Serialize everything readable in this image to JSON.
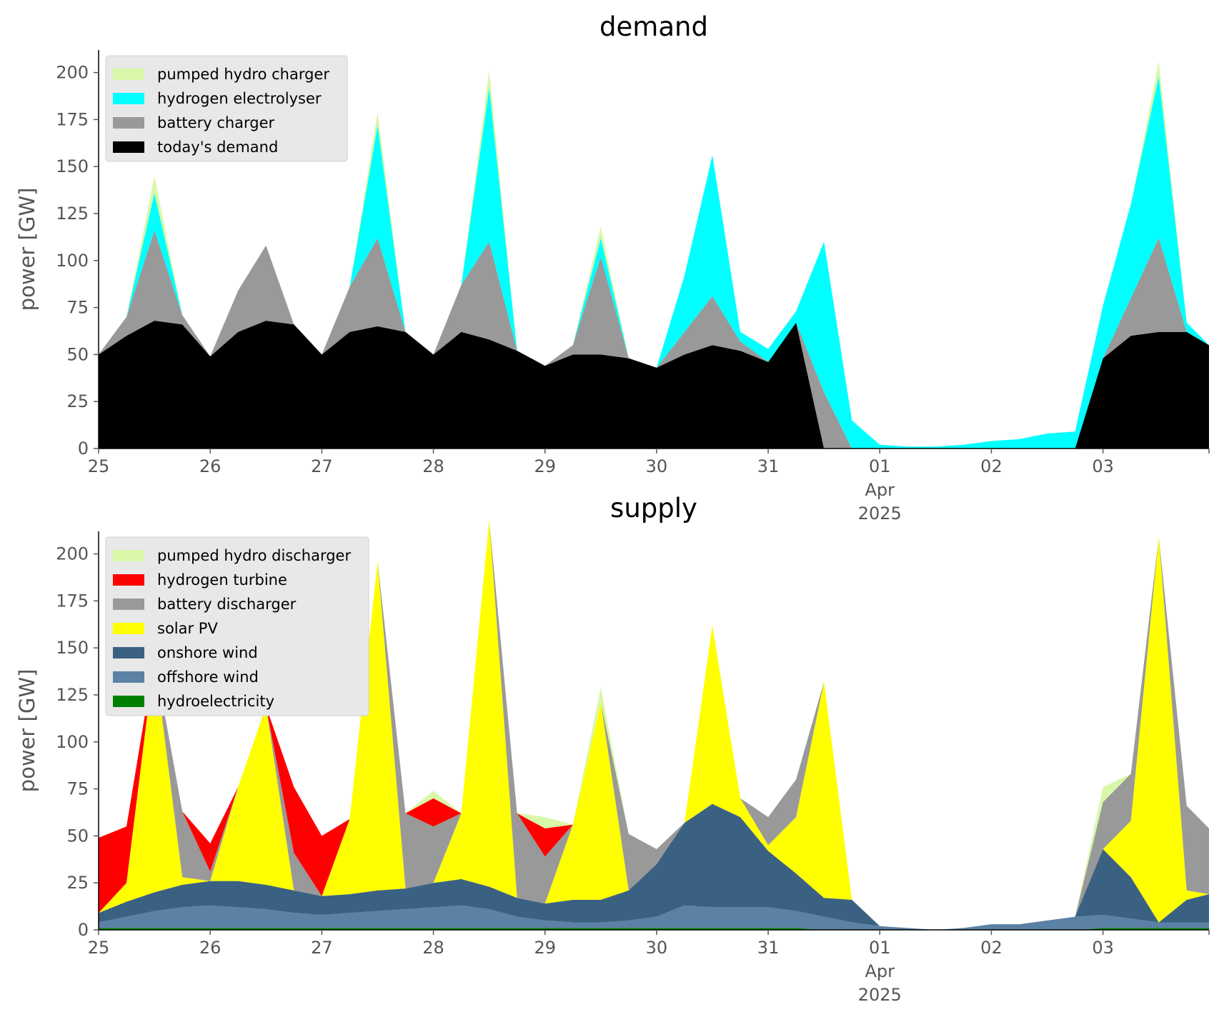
{
  "chart_data": [
    {
      "type": "area",
      "stacked": true,
      "title": "demand",
      "ylabel": "power [GW]",
      "ylim": [
        0,
        212
      ],
      "yticks": [
        "0",
        "25",
        "50",
        "75",
        "100",
        "125",
        "150",
        "175",
        "200"
      ],
      "xlim": [
        0,
        9.95
      ],
      "xticks": [
        {
          "x": 0,
          "labels": [
            "25"
          ]
        },
        {
          "x": 1,
          "labels": [
            "26"
          ]
        },
        {
          "x": 2,
          "labels": [
            "27"
          ]
        },
        {
          "x": 3,
          "labels": [
            "28"
          ]
        },
        {
          "x": 4,
          "labels": [
            "29"
          ]
        },
        {
          "x": 5,
          "labels": [
            "30"
          ]
        },
        {
          "x": 6,
          "labels": [
            "31"
          ]
        },
        {
          "x": 7,
          "labels": [
            "01",
            "Apr",
            "2025"
          ]
        },
        {
          "x": 8,
          "labels": [
            "02"
          ]
        },
        {
          "x": 9,
          "labels": [
            "03"
          ]
        }
      ],
      "legend_location": "upper-left",
      "legend": [
        "pumped hydro charger",
        "hydrogen electrolyser",
        "battery charger",
        "today's demand"
      ],
      "x": [
        0,
        0.25,
        0.5,
        0.75,
        1,
        1.25,
        1.5,
        1.75,
        2,
        2.25,
        2.5,
        2.75,
        3,
        3.25,
        3.5,
        3.75,
        4,
        4.25,
        4.5,
        4.75,
        5,
        5.25,
        5.5,
        5.75,
        6,
        6.25,
        6.5,
        6.75,
        7,
        7.25,
        7.5,
        7.75,
        8,
        8.25,
        8.5,
        8.75,
        9,
        9.25,
        9.5,
        9.75,
        9.95
      ],
      "series": [
        {
          "name": "today's demand",
          "color": "#000000",
          "values": [
            50,
            60,
            68,
            66,
            49,
            62,
            68,
            66,
            50,
            62,
            65,
            62,
            50,
            62,
            58,
            52,
            44,
            50,
            50,
            48,
            43,
            50,
            55,
            52,
            46,
            67,
            0,
            0,
            0,
            0,
            0,
            0,
            0,
            0,
            0,
            0,
            48,
            60,
            62,
            62,
            55
          ]
        },
        {
          "name": "battery charger",
          "color": "#999999",
          "values": [
            0,
            10,
            48,
            5,
            0,
            22,
            40,
            0,
            0,
            24,
            47,
            0,
            0,
            25,
            52,
            0,
            0,
            5,
            52,
            0,
            0,
            12,
            26,
            5,
            0,
            0,
            30,
            0,
            0,
            0,
            0,
            0,
            0,
            0,
            0,
            0,
            0,
            20,
            50,
            0,
            0
          ]
        },
        {
          "name": "hydrogen electrolyser",
          "color": "#00ffff",
          "values": [
            0,
            0,
            20,
            0,
            0,
            0,
            0,
            0,
            0,
            0,
            60,
            0,
            0,
            0,
            82,
            0,
            0,
            0,
            10,
            0,
            0,
            30,
            75,
            5,
            7,
            6,
            80,
            15,
            2,
            1,
            1,
            2,
            4,
            5,
            8,
            9,
            28,
            50,
            86,
            5,
            0
          ]
        },
        {
          "name": "pumped hydro charger",
          "color": "#d8f8a8",
          "values": [
            0,
            0,
            9,
            0,
            0,
            0,
            0,
            0,
            0,
            0,
            7,
            0,
            0,
            0,
            9,
            0,
            0,
            0,
            6,
            0,
            0,
            0,
            0,
            0,
            0,
            0,
            0,
            0,
            0,
            0,
            0,
            0,
            0,
            0,
            0,
            0,
            0,
            0,
            8,
            0,
            0
          ]
        }
      ]
    },
    {
      "type": "area",
      "stacked": true,
      "title": "supply",
      "ylabel": "power [GW]",
      "ylim": [
        0,
        212
      ],
      "yticks": [
        "0",
        "25",
        "50",
        "75",
        "100",
        "125",
        "150",
        "175",
        "200"
      ],
      "xlim": [
        0,
        9.95
      ],
      "xticks": [
        {
          "x": 0,
          "labels": [
            "25"
          ]
        },
        {
          "x": 1,
          "labels": [
            "26"
          ]
        },
        {
          "x": 2,
          "labels": [
            "27"
          ]
        },
        {
          "x": 3,
          "labels": [
            "28"
          ]
        },
        {
          "x": 4,
          "labels": [
            "29"
          ]
        },
        {
          "x": 5,
          "labels": [
            "30"
          ]
        },
        {
          "x": 6,
          "labels": [
            "31"
          ]
        },
        {
          "x": 7,
          "labels": [
            "01",
            "Apr",
            "2025"
          ]
        },
        {
          "x": 8,
          "labels": [
            "02"
          ]
        },
        {
          "x": 9,
          "labels": [
            "03"
          ]
        }
      ],
      "legend_location": "upper-left",
      "legend": [
        "pumped hydro discharger",
        "hydrogen turbine",
        "battery discharger",
        "solar PV",
        "onshore wind",
        "offshore wind",
        "hydroelectricity"
      ],
      "x": [
        0,
        0.25,
        0.5,
        0.75,
        1,
        1.25,
        1.5,
        1.75,
        2,
        2.25,
        2.5,
        2.75,
        3,
        3.25,
        3.5,
        3.75,
        4,
        4.25,
        4.5,
        4.75,
        5,
        5.25,
        5.5,
        5.75,
        6,
        6.25,
        6.5,
        6.75,
        7,
        7.25,
        7.5,
        7.75,
        8,
        8.25,
        8.5,
        8.75,
        9,
        9.25,
        9.5,
        9.75,
        9.95
      ],
      "series": [
        {
          "name": "hydroelectricity",
          "color": "#008000",
          "values": [
            1,
            1,
            1,
            1,
            1,
            1,
            1,
            1,
            1,
            1,
            1,
            1,
            1,
            1,
            1,
            1,
            1,
            1,
            1,
            1,
            1,
            1,
            1,
            1,
            1,
            1,
            0,
            0,
            0,
            0,
            0,
            0,
            0,
            0,
            0,
            0,
            1,
            1,
            1,
            1,
            1
          ]
        },
        {
          "name": "offshore wind",
          "color": "#5b81a4",
          "values": [
            3,
            6,
            9,
            11,
            12,
            11,
            10,
            8,
            7,
            8,
            9,
            10,
            11,
            12,
            10,
            6,
            4,
            3,
            3,
            4,
            6,
            12,
            11,
            11,
            11,
            9,
            7,
            4,
            2,
            1,
            0,
            1,
            3,
            3,
            5,
            7,
            7,
            5,
            3,
            3,
            3
          ]
        },
        {
          "name": "onshore wind",
          "color": "#3b6182",
          "values": [
            5,
            8,
            10,
            12,
            13,
            14,
            13,
            12,
            10,
            10,
            11,
            11,
            13,
            14,
            12,
            10,
            9,
            12,
            12,
            16,
            28,
            44,
            55,
            48,
            30,
            20,
            10,
            12,
            0,
            0,
            0,
            0,
            0,
            0,
            0,
            0,
            35,
            22,
            0,
            12,
            15
          ]
        },
        {
          "name": "solar PV",
          "color": "#ffff00",
          "values": [
            0,
            10,
            125,
            4,
            0,
            50,
            95,
            0,
            0,
            40,
            175,
            0,
            0,
            35,
            195,
            0,
            0,
            40,
            105,
            0,
            0,
            0,
            95,
            10,
            3,
            30,
            115,
            0,
            0,
            0,
            0,
            0,
            0,
            0,
            0,
            0,
            0,
            30,
            205,
            5,
            0
          ]
        },
        {
          "name": "battery discharger",
          "color": "#999999",
          "values": [
            0,
            0,
            0,
            35,
            5,
            0,
            0,
            20,
            0,
            0,
            0,
            40,
            30,
            0,
            0,
            45,
            25,
            0,
            0,
            30,
            8,
            0,
            0,
            0,
            15,
            20,
            0,
            0,
            0,
            0,
            0,
            0,
            0,
            0,
            0,
            0,
            25,
            25,
            0,
            45,
            35
          ]
        },
        {
          "name": "hydrogen turbine",
          "color": "#ff0000",
          "values": [
            40,
            30,
            0,
            0,
            15,
            0,
            0,
            35,
            32,
            0,
            0,
            0,
            15,
            0,
            0,
            0,
            15,
            0,
            0,
            0,
            0,
            0,
            0,
            0,
            0,
            0,
            0,
            0,
            0,
            0,
            0,
            0,
            0,
            0,
            0,
            0,
            0,
            0,
            0,
            0,
            0
          ]
        },
        {
          "name": "pumped hydro discharger",
          "color": "#d8f8a8",
          "values": [
            0,
            0,
            0,
            0,
            0,
            0,
            0,
            0,
            0,
            0,
            0,
            0,
            4,
            0,
            0,
            0,
            6,
            0,
            8,
            0,
            0,
            0,
            0,
            0,
            0,
            0,
            0,
            0,
            0,
            0,
            0,
            0,
            0,
            0,
            0,
            0,
            8,
            0,
            0,
            0,
            0
          ]
        }
      ]
    }
  ]
}
